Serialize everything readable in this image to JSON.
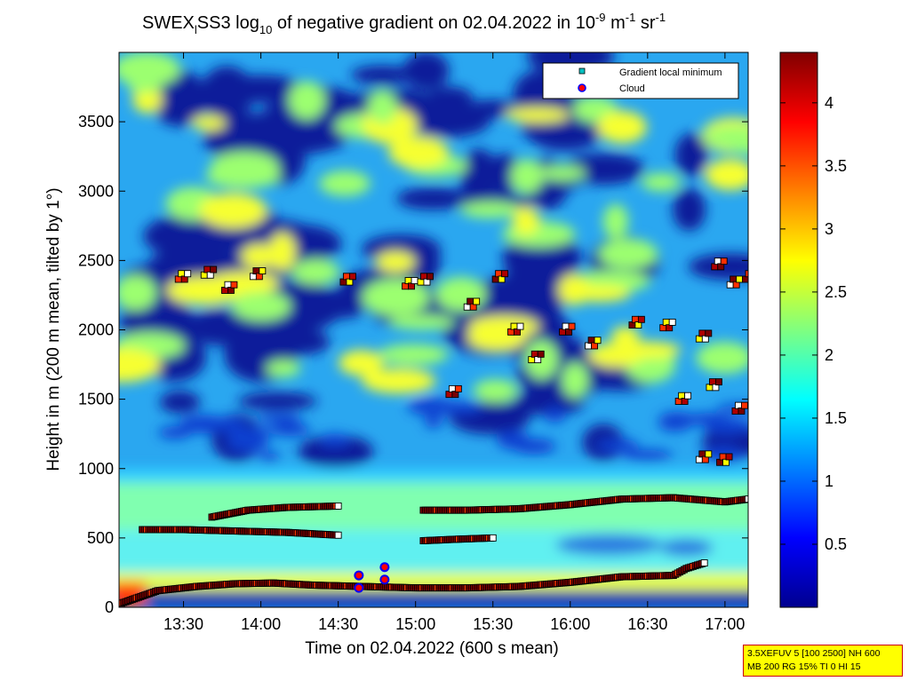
{
  "title": {
    "prefix": "SWEX",
    "sub1": "l",
    "mid": "SS3 log",
    "sub2": "10",
    "rest": " of negative gradient on 02.04.2022 in 10",
    "sup1": "-9",
    "unit1": " m",
    "sup2": "-1",
    "unit2": " sr",
    "sup3": "-1"
  },
  "note_lines": [
    "3.5XEFUV 5 [100 2500] NH 600",
    "MB 200 RG 15% TI 0 HI 15"
  ],
  "chart_data": {
    "type": "heatmap",
    "xlabel": "Time on 02.04.2022 (600 s mean)",
    "ylabel": "Height in m (200 m mean, tilted by 1°)",
    "x_ticks": [
      "13:30",
      "14:00",
      "14:30",
      "15:00",
      "15:30",
      "16:00",
      "16:30",
      "17:00"
    ],
    "x_range_minutes": [
      785,
      1029
    ],
    "y_ticks": [
      0,
      500,
      1000,
      1500,
      2000,
      2500,
      3000,
      3500
    ],
    "y_range": [
      0,
      4000
    ],
    "colorbar": {
      "ticks": [
        0.5,
        1,
        1.5,
        2,
        2.5,
        3,
        3.5,
        4
      ],
      "range": [
        0,
        4.4
      ],
      "colormap": "jet"
    },
    "legend": {
      "placement": "top-right",
      "entries": [
        {
          "label": "Gradient local minimum",
          "marker": "square",
          "color": "#00c0c0"
        },
        {
          "label": "Cloud",
          "marker": "circle",
          "color": "#ff0000",
          "edge": "#0000ff"
        }
      ]
    },
    "series": [
      {
        "name": "Gradient local minimum",
        "layers": [
          {
            "points": [
              [
                786,
                30
              ],
              [
                800,
                120
              ],
              [
                815,
                150
              ],
              [
                830,
                170
              ],
              [
                845,
                175
              ],
              [
                860,
                160
              ],
              [
                880,
                150
              ],
              [
                900,
                140
              ],
              [
                920,
                140
              ],
              [
                940,
                150
              ],
              [
                960,
                180
              ],
              [
                980,
                220
              ],
              [
                1000,
                230
              ],
              [
                1005,
                280
              ],
              [
                1012,
                320
              ]
            ]
          },
          {
            "points": [
              [
                794,
                560
              ],
              [
                810,
                560
              ],
              [
                830,
                550
              ],
              [
                850,
                540
              ],
              [
                870,
                520
              ]
            ]
          },
          {
            "points": [
              [
                821,
                650
              ],
              [
                835,
                700
              ],
              [
                850,
                720
              ],
              [
                870,
                730
              ]
            ]
          },
          {
            "points": [
              [
                903,
                700
              ],
              [
                920,
                700
              ],
              [
                940,
                710
              ],
              [
                960,
                740
              ],
              [
                980,
                780
              ],
              [
                1000,
                790
              ],
              [
                1020,
                760
              ],
              [
                1029,
                780
              ]
            ]
          },
          {
            "points": [
              [
                903,
                480
              ],
              [
                915,
                490
              ],
              [
                930,
                500
              ]
            ]
          }
        ],
        "scatter": [
          [
            808,
            2380
          ],
          [
            818,
            2410
          ],
          [
            826,
            2300
          ],
          [
            837,
            2400
          ],
          [
            872,
            2360
          ],
          [
            896,
            2330
          ],
          [
            902,
            2360
          ],
          [
            913,
            1550
          ],
          [
            920,
            2180
          ],
          [
            931,
            2380
          ],
          [
            937,
            2000
          ],
          [
            945,
            1800
          ],
          [
            957,
            2000
          ],
          [
            967,
            1900
          ],
          [
            984,
            2050
          ],
          [
            996,
            2030
          ],
          [
            1010,
            1950
          ],
          [
            1016,
            2470
          ],
          [
            1022,
            2340
          ],
          [
            1028,
            2380
          ],
          [
            1002,
            1500
          ],
          [
            1014,
            1600
          ],
          [
            1024,
            1430
          ],
          [
            1010,
            1080
          ],
          [
            1018,
            1060
          ]
        ]
      },
      {
        "name": "Cloud",
        "points": [
          [
            878,
            230
          ],
          [
            878,
            140
          ],
          [
            888,
            290
          ],
          [
            888,
            200
          ]
        ]
      }
    ]
  }
}
